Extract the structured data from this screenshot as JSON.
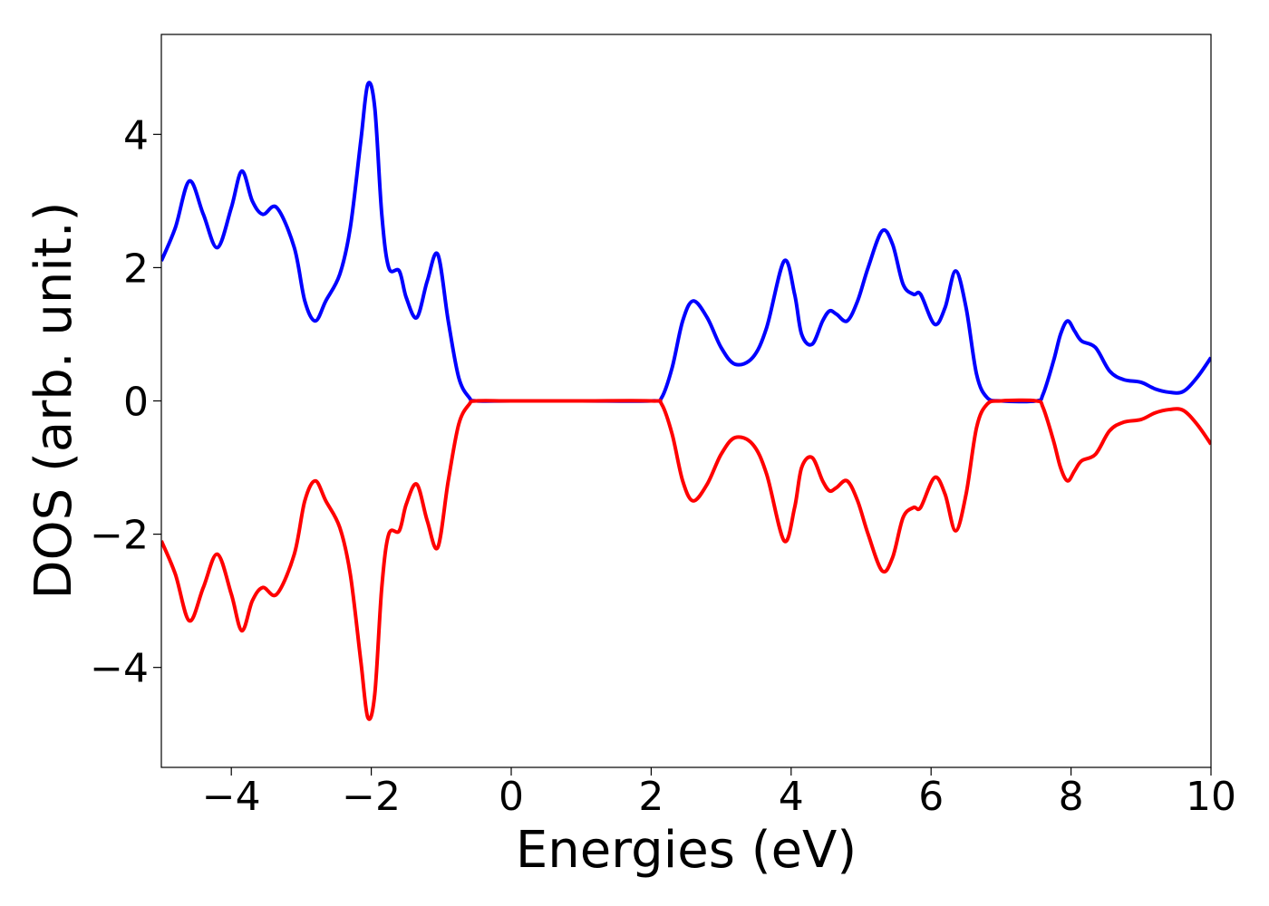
{
  "chart_data": {
    "type": "line",
    "xlabel": "Energies (eV)",
    "ylabel": "DOS (arb. unit.)",
    "xlim": [
      -5,
      10
    ],
    "ylim": [
      -5.5,
      5.5
    ],
    "x_ticks": [
      -4,
      -2,
      0,
      2,
      4,
      6,
      8,
      10
    ],
    "x_tick_labels": [
      "−4",
      "−2",
      "0",
      "2",
      "4",
      "6",
      "8",
      "10"
    ],
    "y_ticks": [
      -4,
      -2,
      0,
      2,
      4
    ],
    "y_tick_labels": [
      "−4",
      "−2",
      "0",
      "2",
      "4"
    ],
    "grid": false,
    "series": [
      {
        "color": "#0000ff",
        "x": [
          -5.0,
          -4.8,
          -4.6,
          -4.4,
          -4.2,
          -4.0,
          -3.85,
          -3.7,
          -3.55,
          -3.35,
          -3.1,
          -2.95,
          -2.8,
          -2.65,
          -2.45,
          -2.3,
          -2.15,
          -2.05,
          -1.95,
          -1.85,
          -1.75,
          -1.6,
          -1.5,
          -1.35,
          -1.2,
          -1.05,
          -0.9,
          -0.75,
          -0.6,
          -0.5,
          0.0,
          1.0,
          2.0,
          2.15,
          2.3,
          2.45,
          2.6,
          2.8,
          3.0,
          3.2,
          3.45,
          3.65,
          3.9,
          4.05,
          4.15,
          4.3,
          4.45,
          4.55,
          4.65,
          4.8,
          4.95,
          5.1,
          5.3,
          5.45,
          5.6,
          5.75,
          5.85,
          6.05,
          6.2,
          6.35,
          6.5,
          6.65,
          6.8,
          7.0,
          7.5,
          7.6,
          7.75,
          7.85,
          7.95,
          8.05,
          8.15,
          8.35,
          8.55,
          8.75,
          9.0,
          9.2,
          9.4,
          9.6,
          9.8,
          10.0
        ],
        "y": [
          2.1,
          2.6,
          3.3,
          2.8,
          2.3,
          2.9,
          3.45,
          3.0,
          2.8,
          2.9,
          2.3,
          1.5,
          1.2,
          1.5,
          1.9,
          2.6,
          3.9,
          4.75,
          4.4,
          2.8,
          2.0,
          1.95,
          1.55,
          1.25,
          1.8,
          2.2,
          1.2,
          0.35,
          0.05,
          0.0,
          0.0,
          0.0,
          0.0,
          0.05,
          0.5,
          1.2,
          1.5,
          1.25,
          0.8,
          0.55,
          0.65,
          1.1,
          2.1,
          1.6,
          1.0,
          0.85,
          1.2,
          1.35,
          1.3,
          1.2,
          1.5,
          2.0,
          2.55,
          2.35,
          1.75,
          1.6,
          1.6,
          1.15,
          1.4,
          1.95,
          1.4,
          0.4,
          0.05,
          0.0,
          0.0,
          0.1,
          0.6,
          1.0,
          1.2,
          1.05,
          0.9,
          0.8,
          0.45,
          0.32,
          0.28,
          0.18,
          0.13,
          0.14,
          0.35,
          0.65
        ]
      },
      {
        "color": "#ff0000",
        "x": [
          -5.0,
          -4.8,
          -4.6,
          -4.4,
          -4.2,
          -4.0,
          -3.85,
          -3.7,
          -3.55,
          -3.35,
          -3.1,
          -2.95,
          -2.8,
          -2.65,
          -2.45,
          -2.3,
          -2.15,
          -2.05,
          -1.95,
          -1.85,
          -1.75,
          -1.6,
          -1.5,
          -1.35,
          -1.2,
          -1.05,
          -0.9,
          -0.75,
          -0.6,
          -0.5,
          0.0,
          1.0,
          2.0,
          2.15,
          2.3,
          2.45,
          2.6,
          2.8,
          3.0,
          3.2,
          3.45,
          3.65,
          3.9,
          4.05,
          4.15,
          4.3,
          4.45,
          4.55,
          4.65,
          4.8,
          4.95,
          5.1,
          5.3,
          5.45,
          5.6,
          5.75,
          5.85,
          6.05,
          6.2,
          6.35,
          6.5,
          6.65,
          6.8,
          7.0,
          7.5,
          7.6,
          7.75,
          7.85,
          7.95,
          8.05,
          8.15,
          8.35,
          8.55,
          8.75,
          9.0,
          9.2,
          9.4,
          9.6,
          9.8,
          10.0
        ],
        "y": [
          -2.1,
          -2.6,
          -3.3,
          -2.8,
          -2.3,
          -2.9,
          -3.45,
          -3.0,
          -2.8,
          -2.9,
          -2.3,
          -1.5,
          -1.2,
          -1.5,
          -1.9,
          -2.6,
          -3.9,
          -4.75,
          -4.4,
          -2.8,
          -2.0,
          -1.95,
          -1.55,
          -1.25,
          -1.8,
          -2.2,
          -1.2,
          -0.35,
          -0.05,
          0.0,
          0.0,
          0.0,
          0.0,
          -0.05,
          -0.5,
          -1.2,
          -1.5,
          -1.25,
          -0.8,
          -0.55,
          -0.65,
          -1.1,
          -2.1,
          -1.6,
          -1.0,
          -0.85,
          -1.2,
          -1.35,
          -1.3,
          -1.2,
          -1.5,
          -2.0,
          -2.55,
          -2.35,
          -1.75,
          -1.6,
          -1.6,
          -1.15,
          -1.4,
          -1.95,
          -1.4,
          -0.4,
          -0.05,
          0.0,
          0.0,
          -0.1,
          -0.6,
          -1.0,
          -1.2,
          -1.05,
          -0.9,
          -0.8,
          -0.45,
          -0.32,
          -0.28,
          -0.18,
          -0.13,
          -0.14,
          -0.35,
          -0.65
        ]
      }
    ]
  }
}
